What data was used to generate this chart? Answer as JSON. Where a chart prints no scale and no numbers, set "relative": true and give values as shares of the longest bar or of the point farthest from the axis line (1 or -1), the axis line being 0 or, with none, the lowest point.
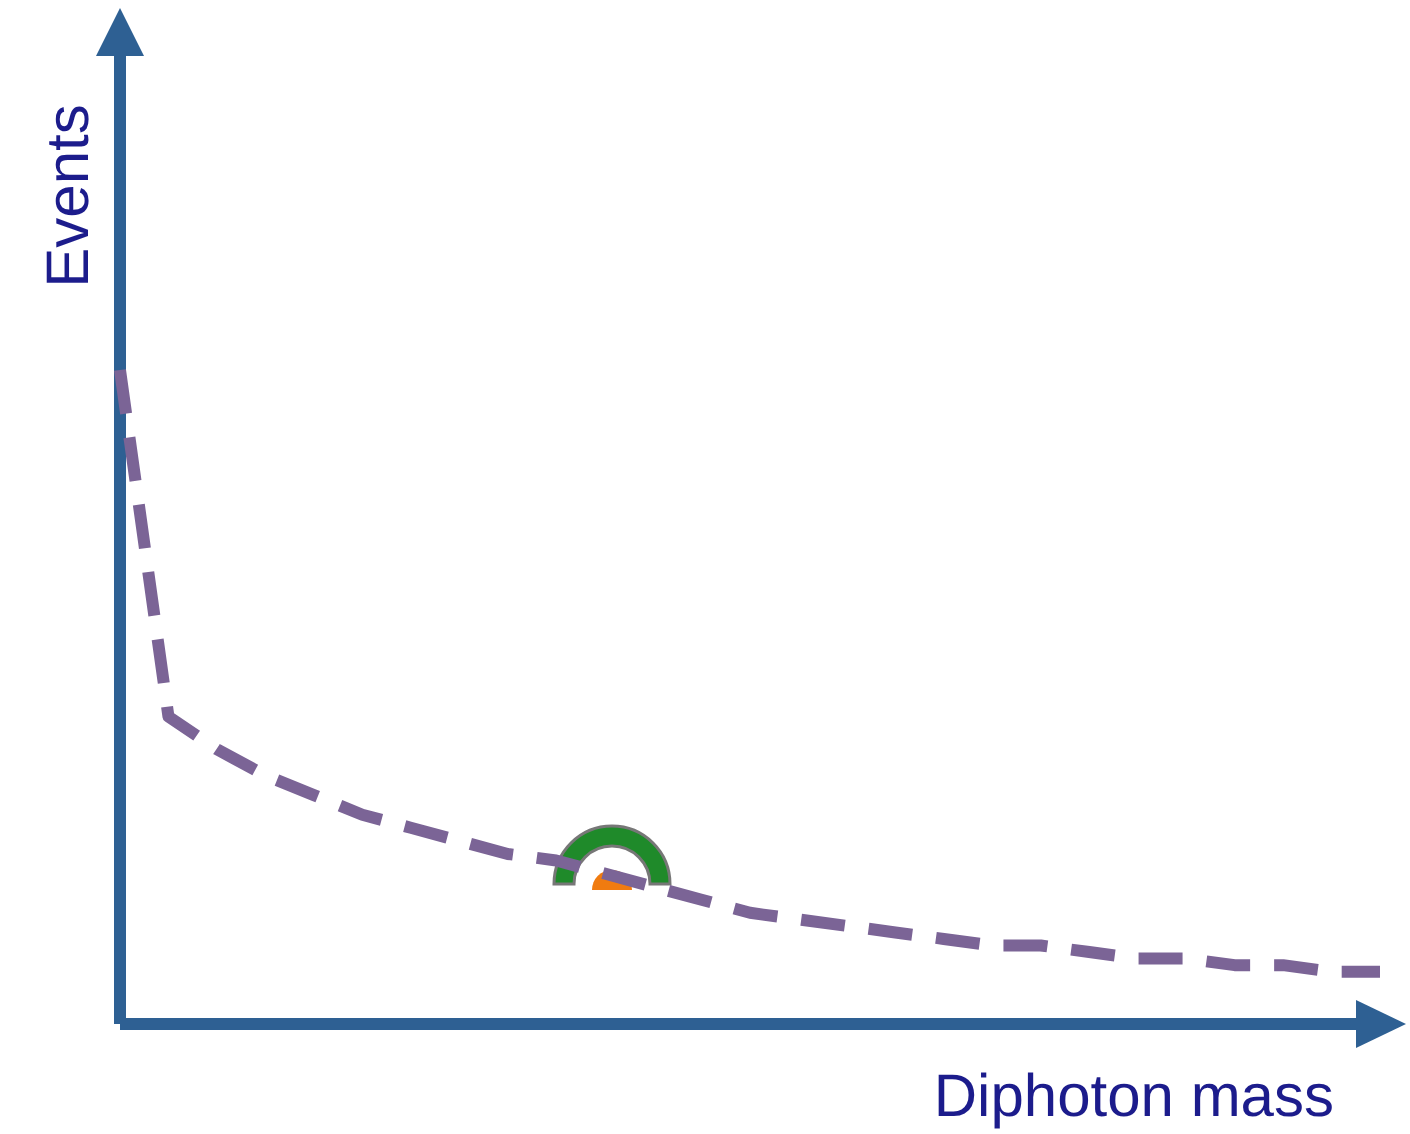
{
  "chart_data": {
    "type": "line",
    "xlabel": "Diphoton mass",
    "ylabel": "Events",
    "relative": true,
    "line_style": "dashed",
    "marker": "none",
    "categories": [
      null,
      null,
      null,
      null,
      null,
      null,
      null,
      null,
      null,
      null,
      null,
      null,
      null,
      null,
      null,
      null,
      null,
      null,
      null,
      null,
      null,
      null,
      null,
      null,
      null,
      null,
      null
    ],
    "series": [
      {
        "color": "#7b6496",
        "values": [
          1,
          0.47,
          0.42,
          0.38,
          0.35,
          0.32,
          0.3,
          0.28,
          0.26,
          0.25,
          0.23,
          0.21,
          0.19,
          0.17,
          0.16,
          0.15,
          0.14,
          0.13,
          0.12,
          0.12,
          0.11,
          0.1,
          0.1,
          0.09,
          0.09,
          0.08,
          0.08
        ]
      }
    ]
  }
}
